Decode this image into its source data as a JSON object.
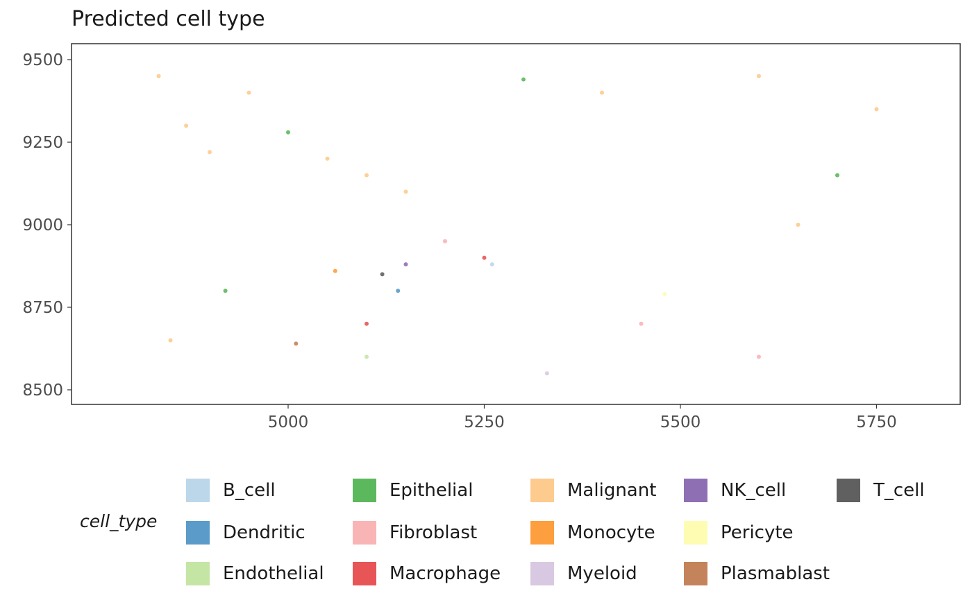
{
  "chart_data": {
    "type": "scatter",
    "title": "Predicted cell type",
    "xlabel": "",
    "ylabel": "",
    "xlim": [
      4820,
      5810
    ],
    "ylim": [
      8495,
      9505
    ],
    "x_ticks": [
      5000,
      5250,
      5500,
      5750
    ],
    "y_ticks": [
      8500,
      8750,
      9000,
      9250,
      9500
    ],
    "x_tick_labels": [
      "5000",
      "5250",
      "5500",
      "5750"
    ],
    "y_tick_labels": [
      "8500",
      "8750",
      "9000",
      "9250",
      "9500"
    ],
    "grid": false,
    "legend_title": "cell_type",
    "legend_position": "bottom",
    "categories": [
      {
        "name": "B_cell",
        "color": "#bcd7ea"
      },
      {
        "name": "Dendritic",
        "color": "#5a9bca"
      },
      {
        "name": "Endothelial",
        "color": "#c5e5a5"
      },
      {
        "name": "Epithelial",
        "color": "#5cb85c"
      },
      {
        "name": "Fibroblast",
        "color": "#f9b4b5"
      },
      {
        "name": "Macrophage",
        "color": "#e85557"
      },
      {
        "name": "Malignant",
        "color": "#fdcb8d"
      },
      {
        "name": "Monocyte",
        "color": "#fd9f3f"
      },
      {
        "name": "Myeloid",
        "color": "#d9c8e2"
      },
      {
        "name": "NK_cell",
        "color": "#8f6fb4"
      },
      {
        "name": "Pericyte",
        "color": "#fefcb3"
      },
      {
        "name": "Plasmablast",
        "color": "#c4835b"
      },
      {
        "name": "T_cell",
        "color": "#606060"
      }
    ],
    "points": [
      {
        "x": 4835,
        "y": 9450,
        "cell_type": "Malignant"
      },
      {
        "x": 4870,
        "y": 9300,
        "cell_type": "Malignant"
      },
      {
        "x": 4900,
        "y": 9220,
        "cell_type": "Malignant"
      },
      {
        "x": 4950,
        "y": 9400,
        "cell_type": "Malignant"
      },
      {
        "x": 5050,
        "y": 9200,
        "cell_type": "Malignant"
      },
      {
        "x": 5100,
        "y": 9150,
        "cell_type": "Malignant"
      },
      {
        "x": 5150,
        "y": 9100,
        "cell_type": "Malignant"
      },
      {
        "x": 5400,
        "y": 9400,
        "cell_type": "Malignant"
      },
      {
        "x": 5600,
        "y": 9450,
        "cell_type": "Malignant"
      },
      {
        "x": 5750,
        "y": 9350,
        "cell_type": "Malignant"
      },
      {
        "x": 4850,
        "y": 8650,
        "cell_type": "Malignant"
      },
      {
        "x": 5650,
        "y": 9000,
        "cell_type": "Malignant"
      },
      {
        "x": 5000,
        "y": 9280,
        "cell_type": "Epithelial"
      },
      {
        "x": 5300,
        "y": 9440,
        "cell_type": "Epithelial"
      },
      {
        "x": 4920,
        "y": 8800,
        "cell_type": "Epithelial"
      },
      {
        "x": 5700,
        "y": 9150,
        "cell_type": "Epithelial"
      },
      {
        "x": 5200,
        "y": 8950,
        "cell_type": "Fibroblast"
      },
      {
        "x": 5450,
        "y": 8700,
        "cell_type": "Fibroblast"
      },
      {
        "x": 5600,
        "y": 8600,
        "cell_type": "Fibroblast"
      },
      {
        "x": 5120,
        "y": 8850,
        "cell_type": "T_cell"
      },
      {
        "x": 5100,
        "y": 8700,
        "cell_type": "Macrophage"
      },
      {
        "x": 5250,
        "y": 8900,
        "cell_type": "Macrophage"
      },
      {
        "x": 5150,
        "y": 8880,
        "cell_type": "NK_cell"
      },
      {
        "x": 5140,
        "y": 8800,
        "cell_type": "Dendritic"
      },
      {
        "x": 5260,
        "y": 8880,
        "cell_type": "B_cell"
      },
      {
        "x": 5480,
        "y": 8790,
        "cell_type": "Pericyte"
      },
      {
        "x": 5100,
        "y": 8600,
        "cell_type": "Endothelial"
      },
      {
        "x": 5060,
        "y": 8860,
        "cell_type": "Monocyte"
      },
      {
        "x": 5330,
        "y": 8550,
        "cell_type": "Myeloid"
      },
      {
        "x": 5010,
        "y": 8640,
        "cell_type": "Plasmablast"
      }
    ]
  }
}
